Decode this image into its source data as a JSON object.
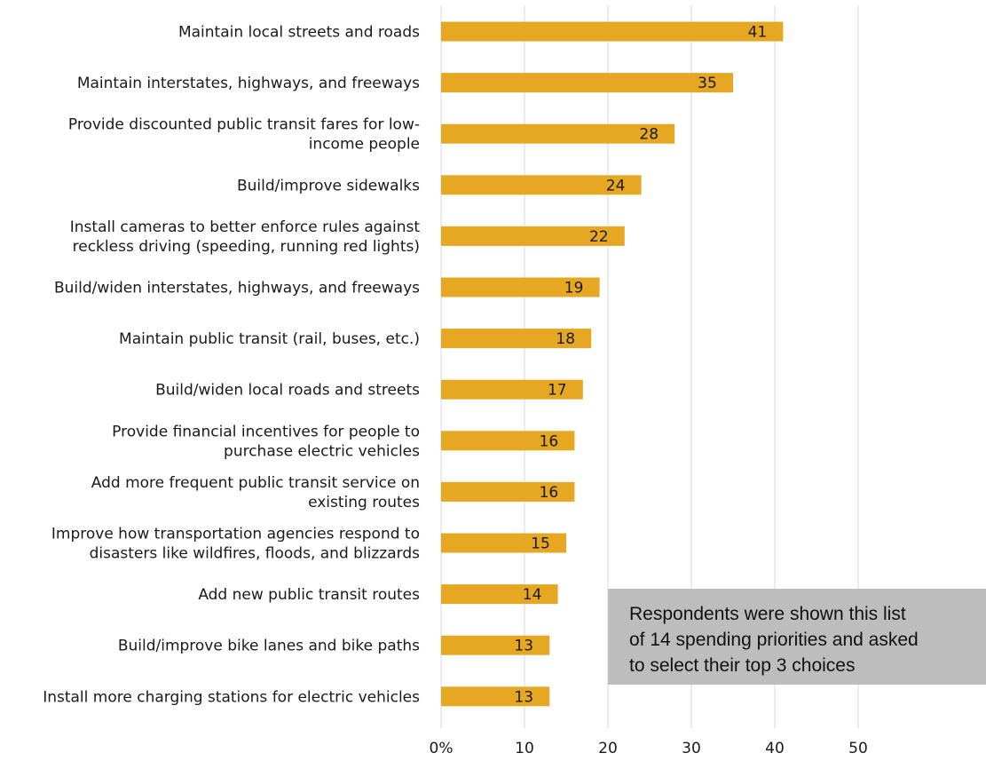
{
  "chart_data": {
    "type": "bar",
    "orientation": "horizontal",
    "categories": [
      [
        "Maintain local streets and roads"
      ],
      [
        "Maintain interstates, highways, and freeways"
      ],
      [
        "Provide discounted public transit fares for low-",
        "income people"
      ],
      [
        "Build/improve sidewalks"
      ],
      [
        "Install cameras to better enforce rules against",
        "reckless driving (speeding, running red lights)"
      ],
      [
        "Build/widen interstates, highways, and freeways"
      ],
      [
        "Maintain public transit (rail, buses, etc.)"
      ],
      [
        "Build/widen local roads and streets"
      ],
      [
        "Provide financial incentives for people to",
        "purchase electric vehicles"
      ],
      [
        "Add more frequent public transit service on",
        "existing routes"
      ],
      [
        "Improve how transportation agencies respond to",
        "disasters like wildfires, floods, and blizzards"
      ],
      [
        "Add new public transit routes"
      ],
      [
        "Build/improve bike lanes and bike paths"
      ],
      [
        "Install more charging stations for electric vehicles"
      ]
    ],
    "values": [
      41,
      35,
      28,
      24,
      22,
      19,
      18,
      17,
      16,
      16,
      15,
      14,
      13,
      13
    ],
    "xticks": [
      "0%",
      "10",
      "20",
      "30",
      "40",
      "50"
    ],
    "xlim": [
      0,
      50
    ],
    "grid": true,
    "bar_color": "#E6A823",
    "gridline_color": "#d9d9d9",
    "title": "",
    "xlabel": "",
    "ylabel": ""
  },
  "annotation": {
    "lines": [
      "Respondents were shown this list",
      "of 14 spending priorities and asked",
      "to select their top 3 choices"
    ],
    "background": "#BDBDBD"
  }
}
